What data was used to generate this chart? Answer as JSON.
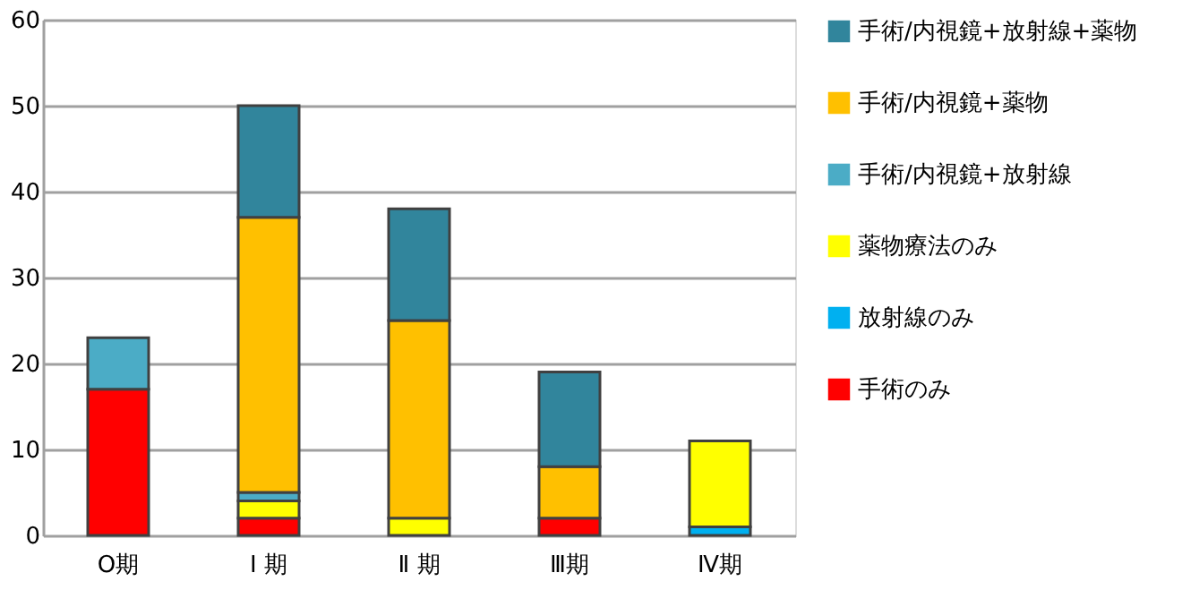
{
  "chart_data": {
    "type": "bar",
    "stacked": true,
    "categories": [
      "O期",
      "Ⅰ 期",
      "Ⅱ 期",
      "Ⅲ期",
      "Ⅳ期"
    ],
    "series": [
      {
        "name": "手術のみ",
        "color": "#ff0000",
        "values": [
          17,
          2,
          null,
          2,
          null
        ]
      },
      {
        "name": "放射線のみ",
        "color": "#00b0f0",
        "values": [
          null,
          null,
          null,
          null,
          1
        ]
      },
      {
        "name": "薬物療法のみ",
        "color": "#ffff00",
        "values": [
          null,
          2,
          2,
          null,
          10
        ]
      },
      {
        "name": "手術/内視鏡+放射線",
        "color": "#4bacc6",
        "values": [
          6,
          1,
          null,
          null,
          null
        ]
      },
      {
        "name": "手術/内視鏡+薬物",
        "color": "#ffc000",
        "values": [
          null,
          32,
          23,
          6,
          null
        ]
      },
      {
        "name": "手術/内視鏡+放射線+薬物",
        "color": "#31859c",
        "values": [
          null,
          13,
          13,
          11,
          null
        ]
      }
    ],
    "ylim": [
      0,
      60
    ],
    "yticks": [
      0,
      10,
      20,
      30,
      40,
      50,
      60
    ],
    "grid": "y",
    "legend": "right"
  }
}
